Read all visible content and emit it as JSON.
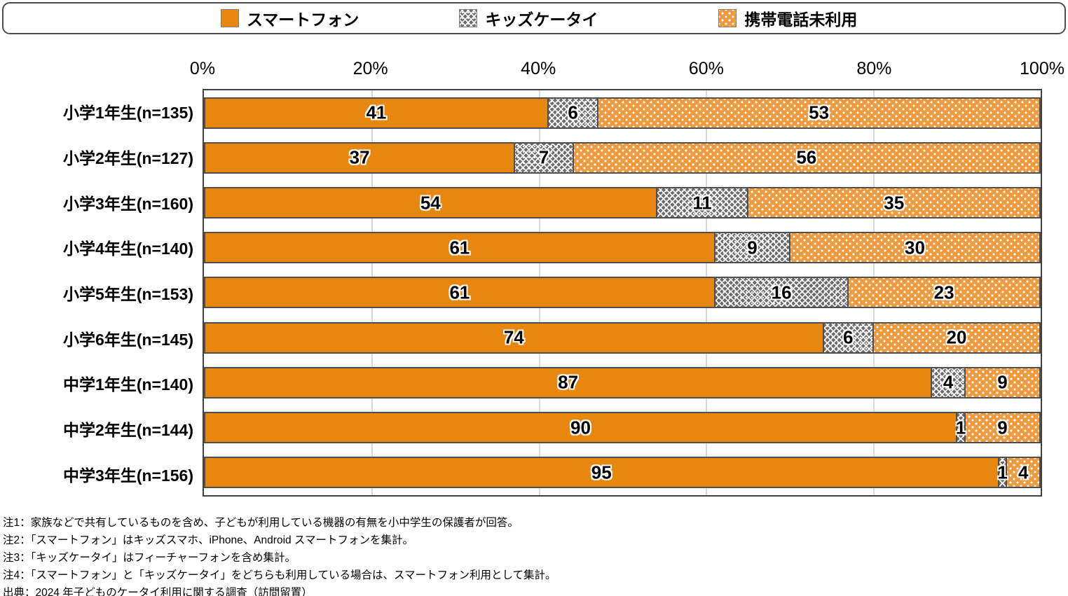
{
  "legend": {
    "items": [
      {
        "key": "smartphone",
        "label": "スマートフォン"
      },
      {
        "key": "kids",
        "label": "キッズケータイ"
      },
      {
        "key": "unused",
        "label": "携帯電話未利用"
      }
    ]
  },
  "axis": {
    "ticks": [
      "0%",
      "20%",
      "40%",
      "60%",
      "80%",
      "100%"
    ]
  },
  "chart_data": {
    "type": "bar",
    "orientation": "horizontal",
    "stacked": true,
    "unit": "%",
    "xlim": [
      0,
      100
    ],
    "tick_step": 20,
    "grid": true,
    "legend_position": "top",
    "categories": [
      "小学1年生(n=135)",
      "小学2年生(n=127)",
      "小学3年生(n=160)",
      "小学4年生(n=140)",
      "小学5年生(n=153)",
      "小学6年生(n=145)",
      "中学1年生(n=140)",
      "中学2年生(n=144)",
      "中学3年生(n=156)"
    ],
    "series": [
      {
        "key": "smartphone",
        "name": "スマートフォン",
        "pattern": "solid",
        "color": "#E8870F",
        "values": [
          41,
          37,
          54,
          61,
          61,
          74,
          87,
          90,
          95
        ]
      },
      {
        "key": "kids",
        "name": "キッズケータイ",
        "pattern": "crosshatch",
        "color": "#6b6b6b",
        "values": [
          6,
          7,
          11,
          9,
          16,
          6,
          4,
          1,
          1
        ]
      },
      {
        "key": "unused",
        "name": "携帯電話未利用",
        "pattern": "dots",
        "color": "#EE9A3F",
        "values": [
          53,
          56,
          35,
          30,
          23,
          20,
          9,
          9,
          4
        ]
      }
    ]
  },
  "footnotes": [
    "注1：家族などで共有しているものを含め、子どもが利用している機器の有無を小中学生の保護者が回答。",
    "注2：「スマートフォン」はキッズスマホ、iPhone、Android スマートフォンを集計。",
    "注3：「キッズケータイ」はフィーチャーフォンを含め集計。",
    "注4：「スマートフォン」と「キッズケータイ」をどちらも利用している場合は、スマートフォン利用として集計。",
    "出典：2024 年子どものケータイ利用に関する調査（訪問留置）"
  ]
}
